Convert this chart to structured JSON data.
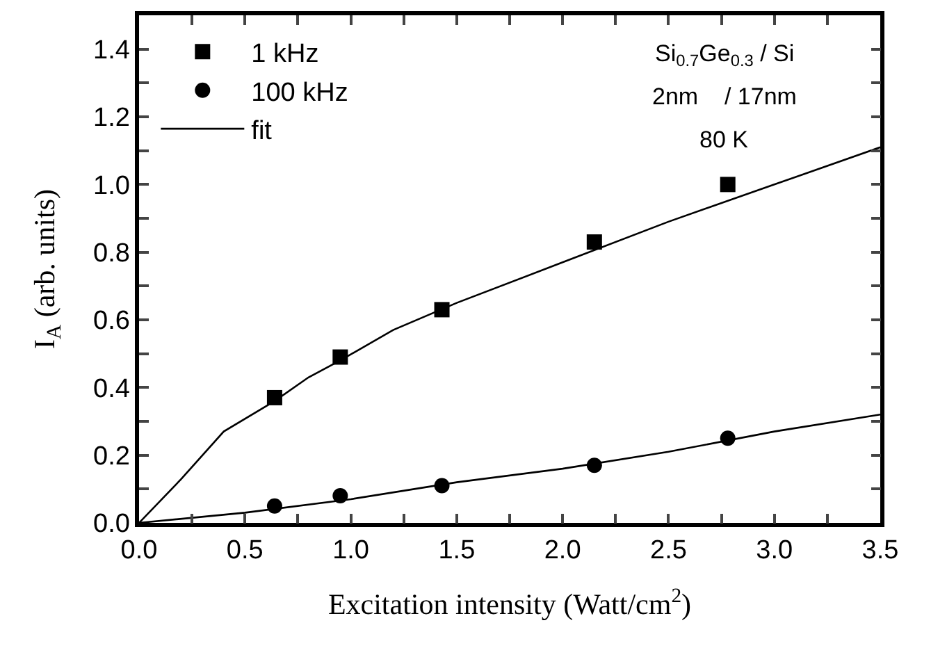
{
  "chart_data": {
    "type": "scatter",
    "xlabel": "Excitation intensity (Watt/cm$^{2}$)",
    "ylabel": "I$_{A}$ (arb. units)",
    "xlim": [
      0,
      3.5
    ],
    "ylim": [
      0,
      1.5
    ],
    "xticks": [
      {
        "value": 0,
        "label": "0.0"
      },
      {
        "value": 0.25,
        "label": null
      },
      {
        "value": 0.5,
        "label": "0.5"
      },
      {
        "value": 0.75,
        "label": null
      },
      {
        "value": 1,
        "label": "1.0"
      },
      {
        "value": 1.25,
        "label": null
      },
      {
        "value": 1.5,
        "label": "1.5"
      },
      {
        "value": 1.75,
        "label": null
      },
      {
        "value": 2,
        "label": "2.0"
      },
      {
        "value": 2.25,
        "label": null
      },
      {
        "value": 2.5,
        "label": "2.5"
      },
      {
        "value": 2.75,
        "label": null
      },
      {
        "value": 3,
        "label": "3.0"
      },
      {
        "value": 3.25,
        "label": null
      },
      {
        "value": 3.5,
        "label": "3.5"
      }
    ],
    "yticks": [
      {
        "value": 0,
        "label": "0.0"
      },
      {
        "value": 0.1,
        "label": null
      },
      {
        "value": 0.2,
        "label": "0.2"
      },
      {
        "value": 0.3,
        "label": null
      },
      {
        "value": 0.4,
        "label": "0.4"
      },
      {
        "value": 0.5,
        "label": null
      },
      {
        "value": 0.6,
        "label": "0.6"
      },
      {
        "value": 0.7,
        "label": null
      },
      {
        "value": 0.8,
        "label": "0.8"
      },
      {
        "value": 0.9,
        "label": null
      },
      {
        "value": 1,
        "label": "1.0"
      },
      {
        "value": 1.1,
        "label": null
      },
      {
        "value": 1.2,
        "label": "1.2"
      },
      {
        "value": 1.3,
        "label": null
      },
      {
        "value": 1.4,
        "label": "1.4"
      }
    ],
    "series": [
      {
        "name": "1 kHz",
        "marker": "square",
        "color": "#000000",
        "x": [
          0.64,
          0.95,
          1.43,
          2.15,
          2.78
        ],
        "values": [
          0.37,
          0.49,
          0.63,
          0.83,
          1.0
        ]
      },
      {
        "name": "100 kHz",
        "marker": "circle",
        "color": "#000000",
        "x": [
          0.64,
          0.95,
          1.43,
          2.15,
          2.78
        ],
        "values": [
          0.05,
          0.08,
          0.11,
          0.17,
          0.25
        ]
      },
      {
        "name": "fit",
        "type": "line",
        "color": "#000000",
        "x": [
          0,
          0.2,
          0.4,
          0.64,
          0.8,
          0.95,
          1.2,
          1.5,
          2.0,
          2.5,
          3.0,
          3.5
        ],
        "values": [
          0,
          0.13,
          0.27,
          0.36,
          0.43,
          0.48,
          0.57,
          0.65,
          0.77,
          0.89,
          1.0,
          1.11
        ]
      },
      {
        "type": "line",
        "color": "#000000",
        "x": [
          0,
          0.5,
          1.0,
          1.5,
          2.0,
          2.5,
          3.0,
          3.5
        ],
        "values": [
          0,
          0.03,
          0.07,
          0.12,
          0.16,
          0.21,
          0.27,
          0.32
        ]
      }
    ],
    "annotations": [
      "Si$_{0.7}$Ge$_{0.3}$ / Si",
      "2nm    / 17nm",
      "80 K"
    ],
    "legend": "top left",
    "grid": false
  }
}
